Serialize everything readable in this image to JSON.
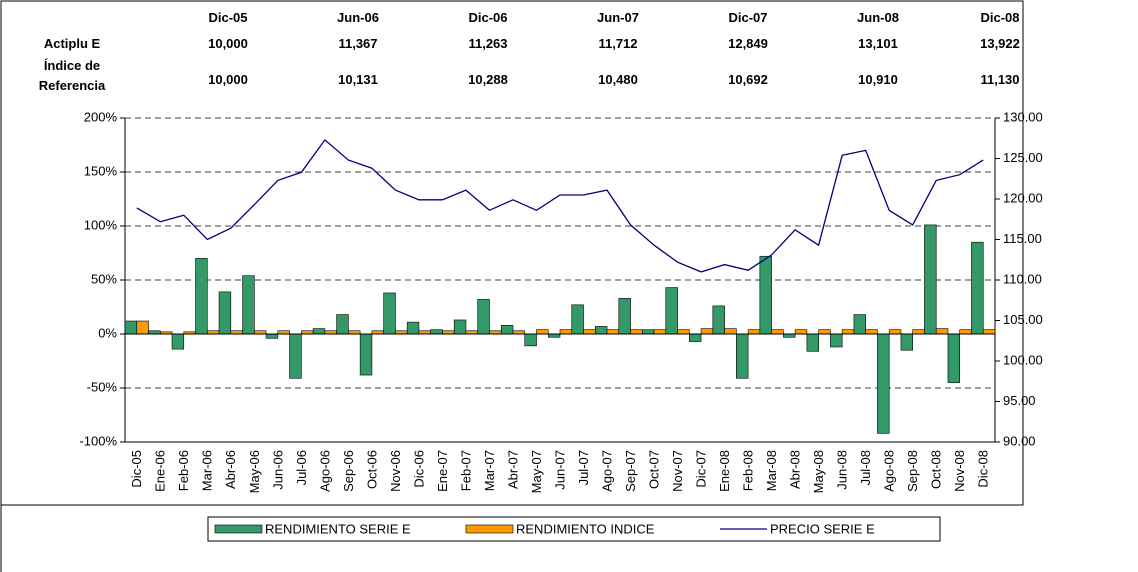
{
  "table": {
    "columns": [
      "Dic-05",
      "Jun-06",
      "Dic-06",
      "Jun-07",
      "Dic-07",
      "Jun-08",
      "Dic-08"
    ],
    "rows": [
      {
        "label": "Actiplu E",
        "cells": [
          "10,000",
          "11,367",
          "11,263",
          "11,712",
          "12,849",
          "13,101",
          "13,922"
        ]
      },
      {
        "label": "Índice de Referencia",
        "cells": [
          "10,000",
          "10,131",
          "10,288",
          "10,480",
          "10,692",
          "10,910",
          "11,130"
        ]
      }
    ]
  },
  "chart_data": {
    "type": "bar",
    "categories": [
      "Dic-05",
      "Ene-06",
      "Feb-06",
      "Mar-06",
      "Abr-06",
      "May-06",
      "Jun-06",
      "Jul-06",
      "Ago-06",
      "Sep-06",
      "Oct-06",
      "Nov-06",
      "Dic-06",
      "Ene-07",
      "Feb-07",
      "Mar-07",
      "Abr-07",
      "May-07",
      "Jun-07",
      "Jul-07",
      "Ago-07",
      "Sep-07",
      "Oct-07",
      "Nov-07",
      "Dic-07",
      "Ene-08",
      "Feb-08",
      "Mar-08",
      "Abr-08",
      "May-08",
      "Jun-08",
      "Jul-08",
      "Ago-08",
      "Sep-08",
      "Oct-08",
      "Nov-08",
      "Dic-08"
    ],
    "series": [
      {
        "name": "RENDIMIENTO SERIE E",
        "color": "#339966",
        "type": "bar",
        "values": [
          12,
          3,
          -14,
          70,
          39,
          54,
          -4,
          -41,
          5,
          18,
          -38,
          38,
          11,
          4,
          13,
          32,
          8,
          -11,
          -3,
          27,
          7,
          33,
          4,
          43,
          -7,
          26,
          -41,
          72,
          -3,
          -16,
          -12,
          18,
          -92,
          -15,
          101,
          -45,
          85
        ]
      },
      {
        "name": "RENDIMIENTO INDICE",
        "color": "#ff9900",
        "type": "bar",
        "values": [
          12,
          2,
          2,
          3,
          3,
          3,
          3,
          3,
          3,
          3,
          3,
          3,
          3,
          3,
          3,
          3,
          3,
          4,
          4,
          4,
          4,
          4,
          4,
          4,
          5,
          5,
          4,
          4,
          4,
          4,
          4,
          4,
          4,
          4,
          5,
          4,
          4
        ]
      },
      {
        "name": "PRECIO SERIE E",
        "color": "#000080",
        "type": "line",
        "axis": "y2",
        "values": [
          118.9,
          117.2,
          118,
          115,
          116.4,
          119.3,
          122.3,
          123.3,
          127.3,
          124.8,
          123.8,
          121.1,
          119.9,
          119.9,
          121.1,
          118.6,
          119.9,
          118.6,
          120.5,
          120.5,
          121.1,
          116.8,
          114.3,
          112.2,
          111,
          111.9,
          111.2,
          113.1,
          116.2,
          114.3,
          125.4,
          126,
          118.6,
          116.8,
          122.3,
          123,
          124.8
        ]
      }
    ],
    "ylim": [
      -100,
      200
    ],
    "yticks": [
      {
        "value": -100,
        "label": "-100%"
      },
      {
        "value": -50,
        "label": "-50%"
      },
      {
        "value": 0,
        "label": "0%"
      },
      {
        "value": 50,
        "label": "50%"
      },
      {
        "value": 100,
        "label": "100%"
      },
      {
        "value": 150,
        "label": "150%"
      },
      {
        "value": 200,
        "label": "200%"
      }
    ],
    "y2lim": [
      90,
      130
    ],
    "y2ticks": [
      {
        "value": 90,
        "label": "90.00"
      },
      {
        "value": 95,
        "label": "95.00"
      },
      {
        "value": 100,
        "label": "100.00"
      },
      {
        "value": 105,
        "label": "105.00"
      },
      {
        "value": 110,
        "label": "110.00"
      },
      {
        "value": 115,
        "label": "115.00"
      },
      {
        "value": 120,
        "label": "120.00"
      },
      {
        "value": 125,
        "label": "125.00"
      },
      {
        "value": 130,
        "label": "130.00"
      }
    ],
    "grid": true,
    "legend": "bottom"
  }
}
